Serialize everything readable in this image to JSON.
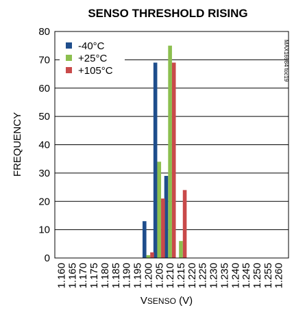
{
  "chart_data": {
    "type": "bar",
    "title": "SENSO THRESHOLD RISING",
    "xlabel": {
      "main": "V",
      "sub": "SENSO",
      "unit": " (V)"
    },
    "ylabel": "FREQUENCY",
    "side_label": "MAX16984 toc19",
    "ylim": [
      0,
      80
    ],
    "yticks": [
      "0",
      "10",
      "20",
      "30",
      "40",
      "50",
      "60",
      "70",
      "80"
    ],
    "categories": [
      "1.160",
      "1.165",
      "1.170",
      "1.175",
      "1.180",
      "1.185",
      "1.190",
      "1.195",
      "1.200",
      "1.205",
      "1.210",
      "1.215",
      "1.220",
      "1.225",
      "1.230",
      "1.235",
      "1.240",
      "1.245",
      "1.250",
      "1.255",
      "1.260"
    ],
    "series": [
      {
        "name": "-40°C",
        "color": "#1f4e8c",
        "values": [
          0,
          0,
          0,
          0,
          0,
          0,
          0,
          0,
          13,
          69,
          29,
          0,
          0,
          0,
          0,
          0,
          0,
          0,
          0,
          0,
          0
        ]
      },
      {
        "name": "+25°C",
        "color": "#8cbf4f",
        "values": [
          0,
          0,
          0,
          0,
          0,
          0,
          0,
          0,
          1,
          34,
          75,
          6,
          0,
          0,
          0,
          0,
          0,
          0,
          0,
          0,
          0
        ]
      },
      {
        "name": "+105°C",
        "color": "#c94a4a",
        "values": [
          0,
          0,
          0,
          0,
          0,
          0,
          0,
          0,
          2,
          21,
          69,
          24,
          0,
          0,
          0,
          0,
          0,
          0,
          0,
          0,
          0
        ]
      }
    ],
    "grid": {
      "horizontal": true,
      "vertical": false
    },
    "legend_position": "top-left"
  }
}
